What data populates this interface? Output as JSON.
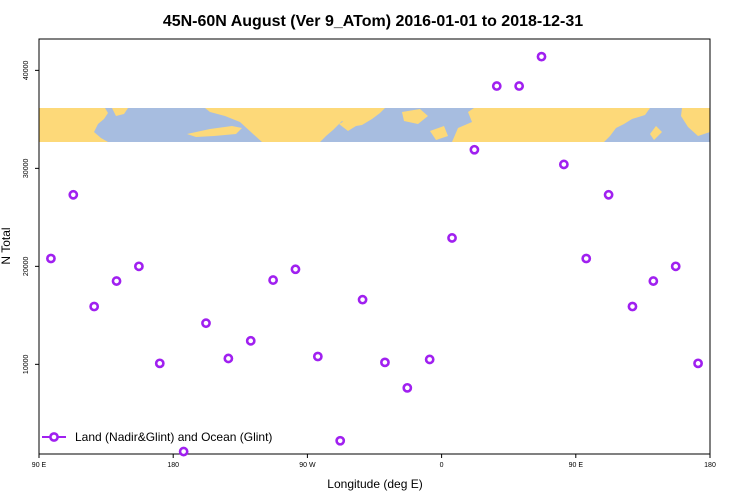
{
  "chart_data": {
    "type": "scatter",
    "title": "45N-60N August (Ver 9_ATom)   2016-01-01 to 2018-12-31",
    "xlabel": "Longitude (deg E)",
    "ylabel": "N Total",
    "x_tick_labels": [
      "90 E",
      "180",
      "90 W",
      "0",
      "90 E",
      "180"
    ],
    "x_tick_values": [
      90,
      180,
      270,
      360,
      450,
      540
    ],
    "xlim": [
      90,
      540
    ],
    "y_tick_labels": [
      "10000",
      "20000",
      "30000",
      "40000"
    ],
    "y_tick_values": [
      10000,
      20000,
      30000,
      40000
    ],
    "ylim": [
      850,
      43200
    ],
    "grid": false,
    "legend_position": "bottom-left",
    "series": [
      {
        "name": "Land (Nadir&Glint) and Ocean (Glint)",
        "color": "#a020f0",
        "x": [
          98,
          113,
          127,
          142,
          157,
          171,
          187,
          202,
          217,
          232,
          247,
          262,
          277,
          292,
          307,
          322,
          337,
          352,
          367,
          382,
          397,
          412,
          427,
          442,
          457,
          472,
          488,
          502,
          517,
          532
        ],
        "y": [
          20800,
          27300,
          15900,
          18500,
          20000,
          10100,
          1100,
          14200,
          10600,
          12400,
          18600,
          19700,
          10800,
          2200,
          16600,
          10200,
          7600,
          10500,
          22900,
          31900,
          38400,
          38400,
          41400,
          30400,
          20800,
          27300,
          15900,
          18500,
          20000,
          10100
        ]
      }
    ],
    "background_map_band": {
      "ocean_color": "#a7bde0",
      "land_color": "#fdd979",
      "lat_range": "45N-60N"
    }
  }
}
